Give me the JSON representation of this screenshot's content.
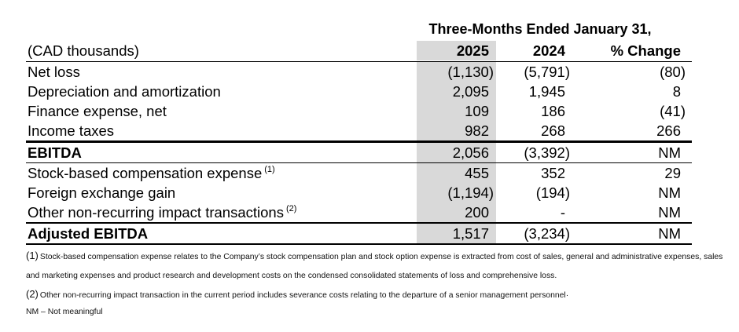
{
  "title": "Three-Months Ended January 31,",
  "table": {
    "header": {
      "label": "(CAD thousands)",
      "y2025": "2025",
      "y2024": "2024",
      "change": "% Change"
    },
    "rows": [
      {
        "label": "Net loss",
        "v2025": "(1,130)",
        "v2024": "(5,791)",
        "change": "(80)"
      },
      {
        "label": "Depreciation and amortization",
        "v2025": "2,095",
        "v2024": "1,945",
        "change": "8"
      },
      {
        "label": "Finance expense, net",
        "v2025": "109",
        "v2024": "186",
        "change": "(41)"
      },
      {
        "label": "Income taxes",
        "v2025": "982",
        "v2024": "268",
        "change": "266"
      },
      {
        "label": "EBITDA",
        "v2025": "2,056",
        "v2024": "(3,392)",
        "change": "NM"
      },
      {
        "label": "Stock-based compensation expense",
        "sup": "(1)",
        "v2025": "455",
        "v2024": "352",
        "change": "29"
      },
      {
        "label": "Foreign exchange gain",
        "v2025": "(1,194)",
        "v2024": "(194)",
        "change": "NM"
      },
      {
        "label": "Other non-recurring impact transactions",
        "sup": "(2)",
        "v2025": "200",
        "v2024": "-",
        "change": "NM"
      },
      {
        "label": "Adjusted EBITDA",
        "v2025": "1,517",
        "v2024": "(3,234)",
        "change": "NM"
      }
    ]
  },
  "footnotes": {
    "fn1_marker": "(1)",
    "fn1_line1": "Stock-based compensation expense relates to the Company’s stock compensation plan and stock option expense is extracted from cost of sales, general and administrative expenses, sales",
    "fn1_line2": "and marketing expenses and product research and development costs on the condensed consolidated statements of loss and comprehensive loss.",
    "fn2_marker": "(2)",
    "fn2_text": "Other non-recurring impact transaction in the current period includes severance costs relating to the departure of a senior management personnel·",
    "nm_note": "NM – Not meaningful"
  },
  "colors": {
    "shade": "#d9d9d9",
    "line": "#000000",
    "text": "#000000"
  }
}
